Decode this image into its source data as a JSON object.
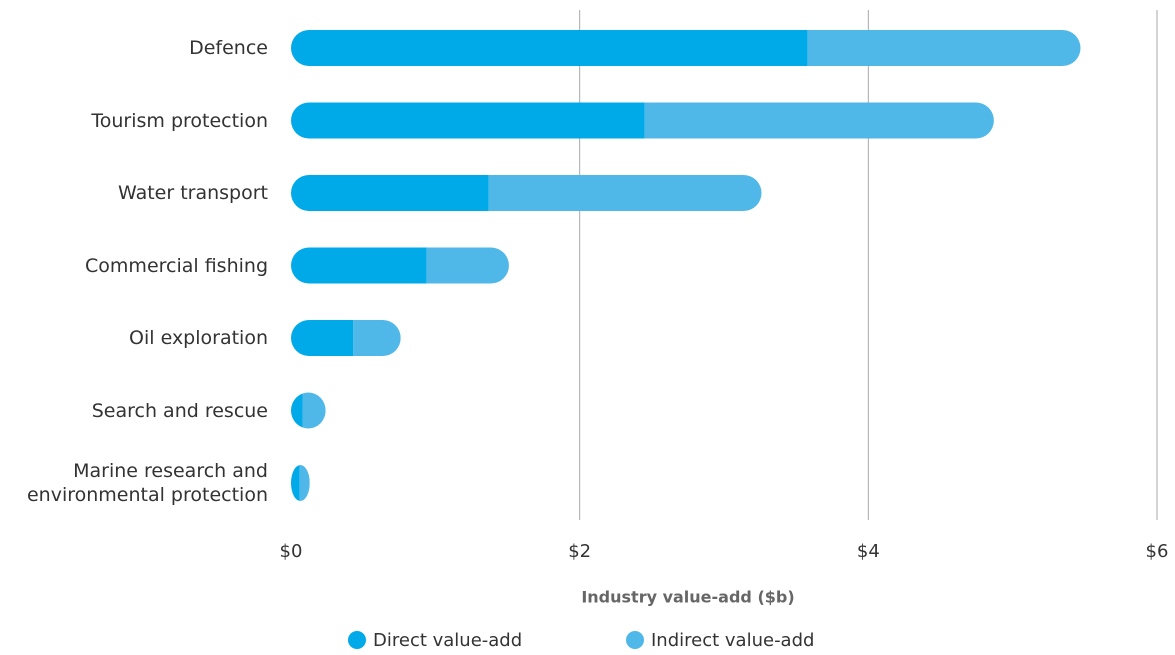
{
  "chart_data": {
    "type": "stacked_barh",
    "categories": [
      "Defence",
      "Tourism protection",
      "Water transport",
      "Commercial fishing",
      "Oil exploration",
      "Search and rescue",
      "Marine research and\nenvironmental protection"
    ],
    "series": [
      {
        "name": "Direct value-add",
        "color": "#00a9e8",
        "values": [
          3.58,
          2.45,
          1.37,
          0.94,
          0.43,
          0.08,
          0.06
        ]
      },
      {
        "name": "Indirect value-add",
        "color": "#4fb8e8",
        "values": [
          1.89,
          2.42,
          1.89,
          0.57,
          0.33,
          0.16,
          0.07
        ]
      }
    ],
    "xlabel": "Industry value-add ($b)",
    "xlim": [
      0,
      6
    ],
    "xticks": [
      {
        "value": 0,
        "label": "$0"
      },
      {
        "value": 2,
        "label": "$2"
      },
      {
        "value": 4,
        "label": "$4"
      },
      {
        "value": 6,
        "label": "$6"
      }
    ],
    "grid": true
  }
}
